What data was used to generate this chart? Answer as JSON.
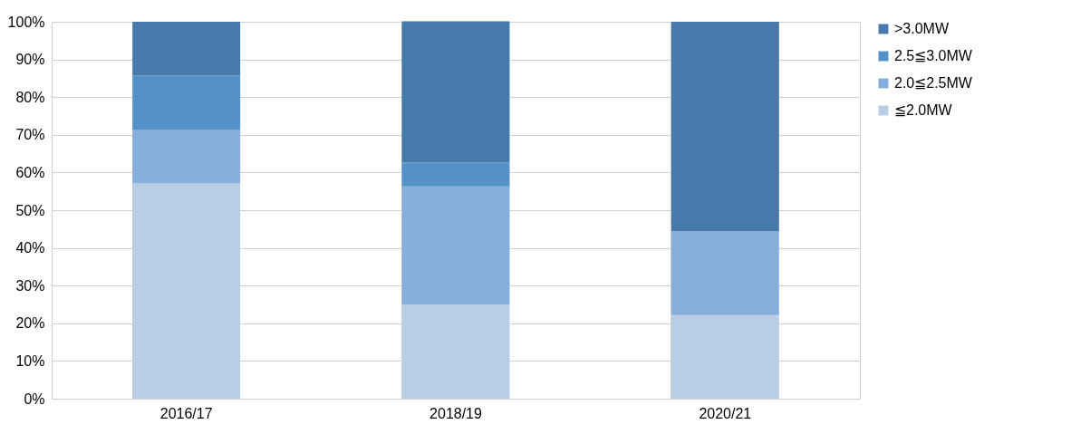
{
  "chart_data": {
    "type": "bar",
    "stacked": true,
    "categories": [
      "2016/17",
      "2018/19",
      "2020/21"
    ],
    "series": [
      {
        "name": "≦2.0MW",
        "color": "#b9cde5",
        "values": [
          57.1,
          25.0,
          22.2
        ]
      },
      {
        "name": "2.0≦2.5MW",
        "color": "#85aedb",
        "values": [
          14.3,
          31.3,
          22.2
        ]
      },
      {
        "name": "2.5≦3.0MW",
        "color": "#5591c9",
        "values": [
          14.3,
          6.3,
          0
        ]
      },
      {
        "name": ">3.0MW",
        "color": "#467aaa",
        "values": [
          14.3,
          37.5,
          55.6
        ]
      }
    ],
    "ylim": [
      0,
      100
    ],
    "yticks": [
      {
        "value": 0,
        "label": "0%"
      },
      {
        "value": 10,
        "label": "10%"
      },
      {
        "value": 20,
        "label": "20%"
      },
      {
        "value": 30,
        "label": "30%"
      },
      {
        "value": 40,
        "label": "40%"
      },
      {
        "value": 50,
        "label": "50%"
      },
      {
        "value": 60,
        "label": "60%"
      },
      {
        "value": 70,
        "label": "70%"
      },
      {
        "value": 80,
        "label": "80%"
      },
      {
        "value": 90,
        "label": "90%"
      },
      {
        "value": 100,
        "label": "100%"
      }
    ],
    "grid": true,
    "legend": "right"
  }
}
